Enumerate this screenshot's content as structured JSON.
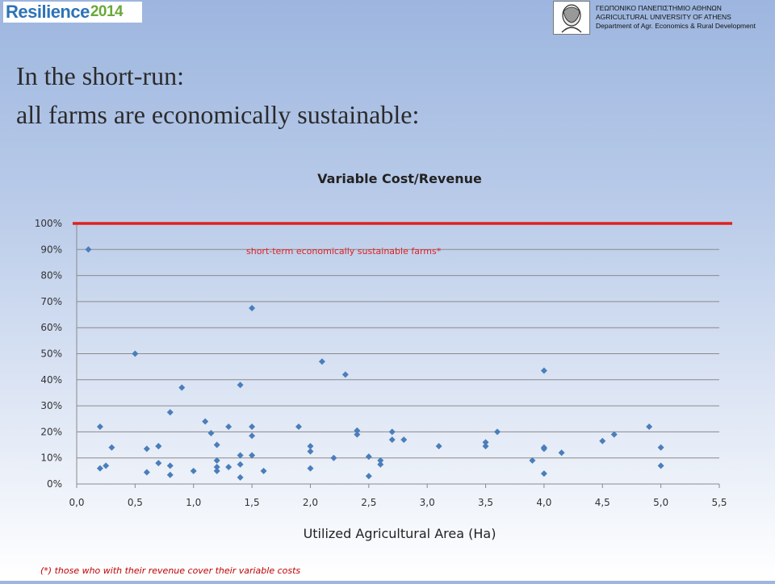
{
  "header": {
    "logo_text": "Resilience",
    "logo_year": "2014",
    "university_lines": [
      "ΓΕΩΠΟΝΙΚΟ ΠΑΝΕΠΙΣΤΗΜΙΟ ΑΘΗΝΩΝ",
      "AGRICULTURAL UNIVERSITY OF ATHENS",
      "Department of Agr. Economics & Rural Development"
    ]
  },
  "slide": {
    "title_line1": "In the short-run:",
    "title_line2": "all farms are economically sustainable:",
    "footnote": "(*) those who with their revenue cover their variable costs"
  },
  "chart_data": {
    "type": "scatter",
    "title": "Variable Cost/Revenue",
    "xlabel": "Utilized Agricultural Area (Ha)",
    "ylabel": "",
    "xlim": [
      0,
      5.5
    ],
    "ylim": [
      0,
      1.0
    ],
    "x_ticks": [
      "0,0",
      "0,5",
      "1,0",
      "1,5",
      "2,0",
      "2,5",
      "3,0",
      "3,5",
      "4,0",
      "4,5",
      "5,0",
      "5,5"
    ],
    "y_ticks": [
      "0%",
      "10%",
      "20%",
      "30%",
      "40%",
      "50%",
      "60%",
      "70%",
      "80%",
      "90%",
      "100%"
    ],
    "grid": true,
    "threshold_line": {
      "y": 1.0,
      "color": "#e02020"
    },
    "annotation": "short-term economically sustainable farms*",
    "point_color": "#4a7ebb",
    "points": [
      [
        0.1,
        0.9
      ],
      [
        0.2,
        0.22
      ],
      [
        0.2,
        0.06
      ],
      [
        0.25,
        0.07
      ],
      [
        0.3,
        0.14
      ],
      [
        0.5,
        0.5
      ],
      [
        0.6,
        0.135
      ],
      [
        0.6,
        0.045
      ],
      [
        0.7,
        0.145
      ],
      [
        0.7,
        0.145
      ],
      [
        0.7,
        0.08
      ],
      [
        0.8,
        0.275
      ],
      [
        0.8,
        0.07
      ],
      [
        0.8,
        0.035
      ],
      [
        0.9,
        0.37
      ],
      [
        1.0,
        0.05
      ],
      [
        1.1,
        0.24
      ],
      [
        1.15,
        0.195
      ],
      [
        1.2,
        0.15
      ],
      [
        1.2,
        0.09
      ],
      [
        1.2,
        0.065
      ],
      [
        1.2,
        0.05
      ],
      [
        1.3,
        0.22
      ],
      [
        1.3,
        0.065
      ],
      [
        1.4,
        0.38
      ],
      [
        1.4,
        0.11
      ],
      [
        1.4,
        0.075
      ],
      [
        1.4,
        0.025
      ],
      [
        1.5,
        0.675
      ],
      [
        1.5,
        0.22
      ],
      [
        1.5,
        0.185
      ],
      [
        1.5,
        0.11
      ],
      [
        1.6,
        0.05
      ],
      [
        1.9,
        0.22
      ],
      [
        2.0,
        0.145
      ],
      [
        2.0,
        0.125
      ],
      [
        2.0,
        0.06
      ],
      [
        2.1,
        0.47
      ],
      [
        2.2,
        0.1
      ],
      [
        2.3,
        0.42
      ],
      [
        2.4,
        0.205
      ],
      [
        2.4,
        0.19
      ],
      [
        2.5,
        0.105
      ],
      [
        2.5,
        0.03
      ],
      [
        2.6,
        0.09
      ],
      [
        2.6,
        0.075
      ],
      [
        2.7,
        0.2
      ],
      [
        2.7,
        0.17
      ],
      [
        2.8,
        0.17
      ],
      [
        3.1,
        0.145
      ],
      [
        3.5,
        0.16
      ],
      [
        3.5,
        0.145
      ],
      [
        3.6,
        0.2
      ],
      [
        3.9,
        0.09
      ],
      [
        4.0,
        0.435
      ],
      [
        4.0,
        0.14
      ],
      [
        4.0,
        0.135
      ],
      [
        4.0,
        0.04
      ],
      [
        4.15,
        0.12
      ],
      [
        4.5,
        0.165
      ],
      [
        4.6,
        0.19
      ],
      [
        4.9,
        0.22
      ],
      [
        5.0,
        0.14
      ],
      [
        5.0,
        0.07
      ]
    ]
  }
}
